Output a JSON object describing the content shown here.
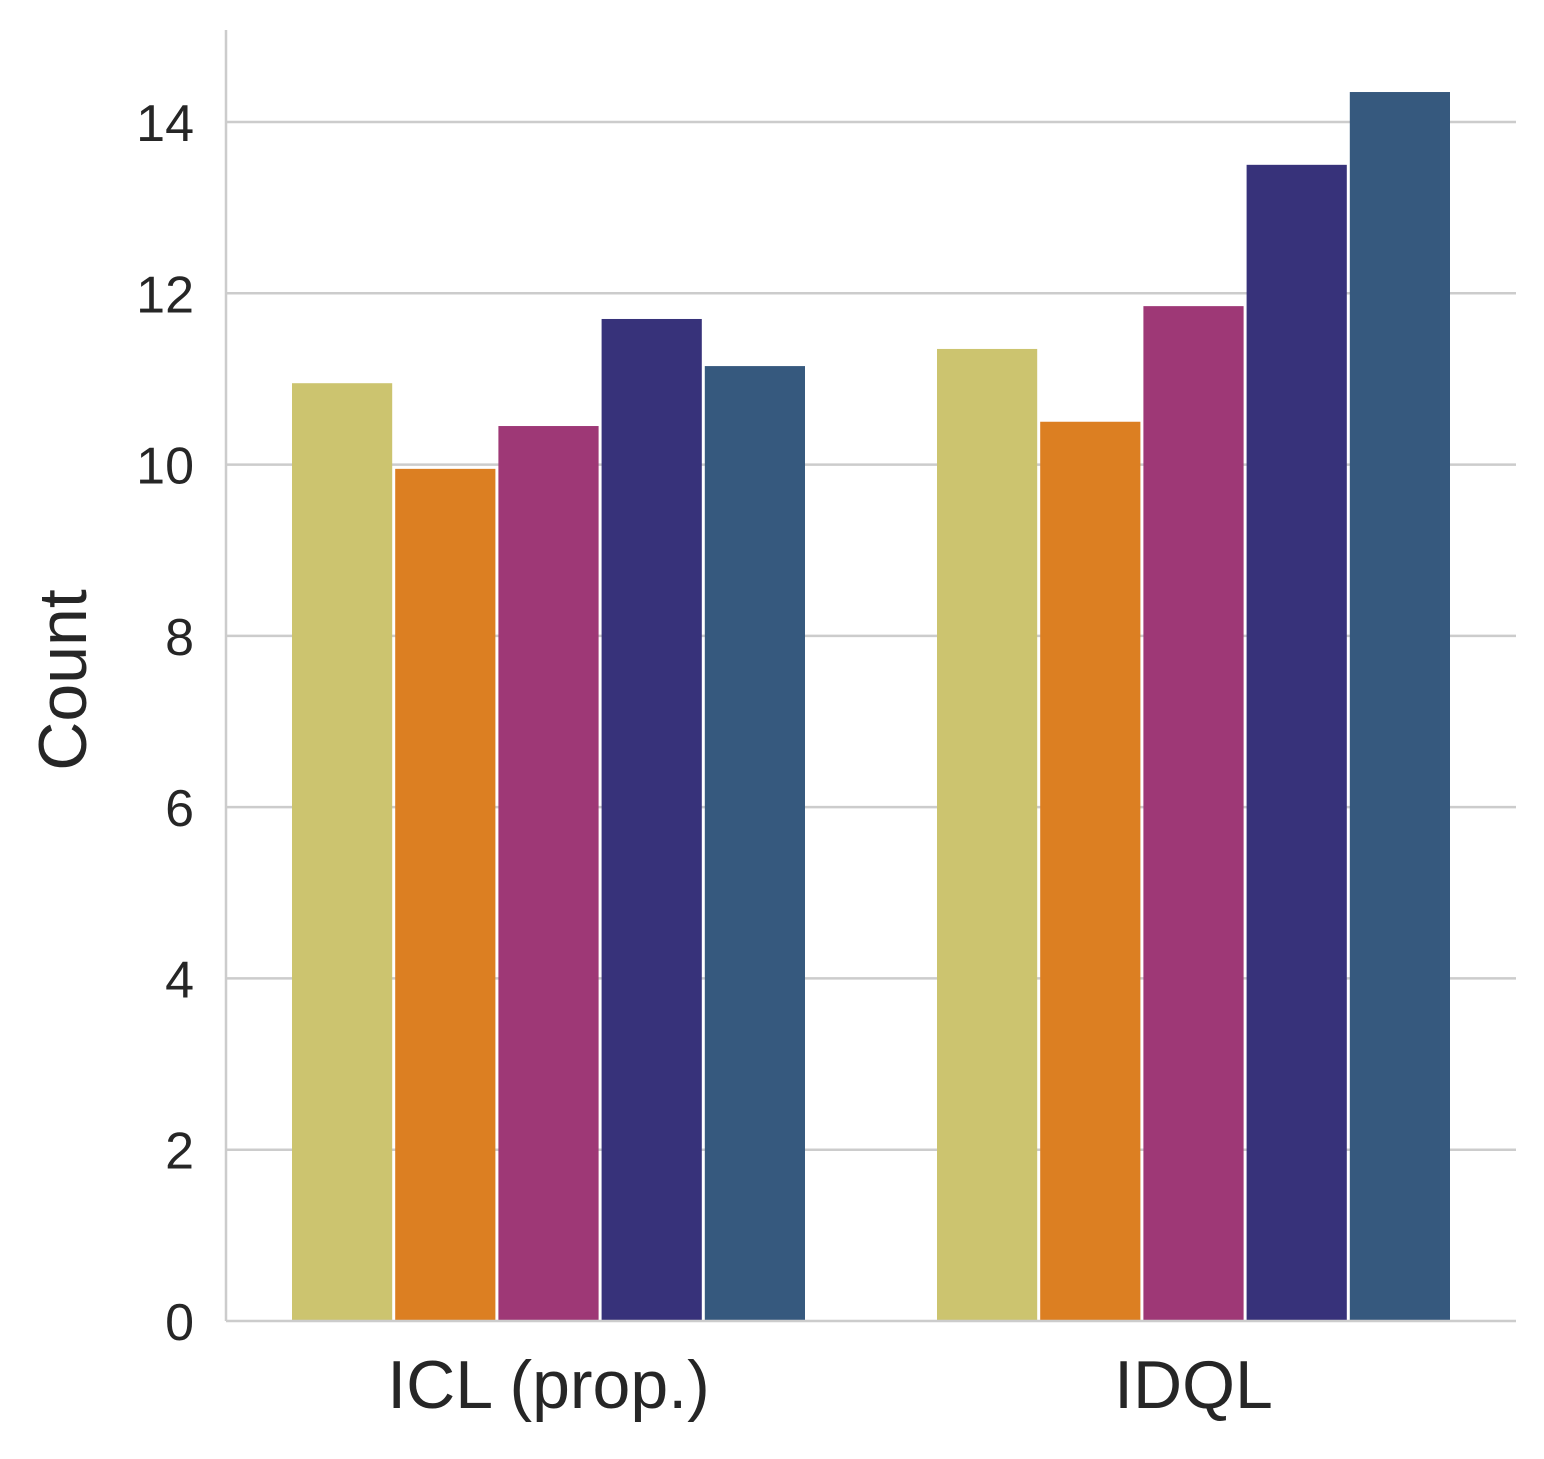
{
  "chart_data": {
    "type": "bar",
    "title": "",
    "xlabel": "",
    "ylabel": "Count",
    "ylim": [
      0,
      15
    ],
    "yticks": [
      0,
      2,
      4,
      6,
      8,
      10,
      12,
      14
    ],
    "grid": "horizontal",
    "categories": [
      "ICL (prop.)",
      "IDQL"
    ],
    "series": [
      {
        "name": "series-1",
        "color": "#ccc46f",
        "values": [
          10.95,
          11.35
        ]
      },
      {
        "name": "series-2",
        "color": "#dc7f22",
        "values": [
          9.95,
          10.5
        ]
      },
      {
        "name": "series-3",
        "color": "#9e3876",
        "values": [
          10.45,
          11.85
        ]
      },
      {
        "name": "series-4",
        "color": "#37327a",
        "values": [
          11.7,
          13.5
        ]
      },
      {
        "name": "series-5",
        "color": "#36597e",
        "values": [
          11.15,
          14.35
        ]
      }
    ]
  }
}
